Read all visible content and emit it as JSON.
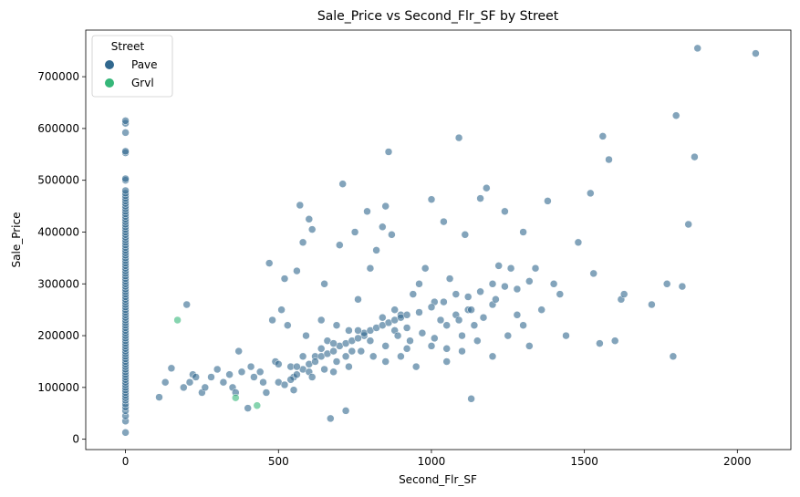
{
  "chart_data": {
    "type": "scatter",
    "title": "Sale_Price vs Second_Flr_SF by Street",
    "xlabel": "Second_Flr_SF",
    "ylabel": "Sale_Price",
    "xlim": [
      -130,
      2175
    ],
    "ylim": [
      -20000,
      790000
    ],
    "xticks": [
      0,
      500,
      1000,
      1500,
      2000
    ],
    "yticks": [
      0,
      100000,
      200000,
      300000,
      400000,
      500000,
      600000,
      700000
    ],
    "grid": false,
    "legend": {
      "title": "Street",
      "placement": "top-left"
    },
    "colors": {
      "Pave": "#31688e",
      "Grvl": "#35b779"
    },
    "series": [
      {
        "name": "Pave",
        "color": "#31688e",
        "points": [
          [
            0,
            13000
          ],
          [
            0,
            35000
          ],
          [
            0,
            45000
          ],
          [
            0,
            55000
          ],
          [
            0,
            62000
          ],
          [
            0,
            68000
          ],
          [
            0,
            75000
          ],
          [
            0,
            80000
          ],
          [
            0,
            85000
          ],
          [
            0,
            90000
          ],
          [
            0,
            95000
          ],
          [
            0,
            100000
          ],
          [
            0,
            105000
          ],
          [
            0,
            110000
          ],
          [
            0,
            115000
          ],
          [
            0,
            120000
          ],
          [
            0,
            125000
          ],
          [
            0,
            130000
          ],
          [
            0,
            135000
          ],
          [
            0,
            140000
          ],
          [
            0,
            145000
          ],
          [
            0,
            150000
          ],
          [
            0,
            155000
          ],
          [
            0,
            160000
          ],
          [
            0,
            165000
          ],
          [
            0,
            170000
          ],
          [
            0,
            175000
          ],
          [
            0,
            180000
          ],
          [
            0,
            185000
          ],
          [
            0,
            190000
          ],
          [
            0,
            195000
          ],
          [
            0,
            200000
          ],
          [
            0,
            205000
          ],
          [
            0,
            210000
          ],
          [
            0,
            215000
          ],
          [
            0,
            220000
          ],
          [
            0,
            225000
          ],
          [
            0,
            230000
          ],
          [
            0,
            235000
          ],
          [
            0,
            240000
          ],
          [
            0,
            245000
          ],
          [
            0,
            250000
          ],
          [
            0,
            255000
          ],
          [
            0,
            260000
          ],
          [
            0,
            265000
          ],
          [
            0,
            270000
          ],
          [
            0,
            275000
          ],
          [
            0,
            280000
          ],
          [
            0,
            285000
          ],
          [
            0,
            290000
          ],
          [
            0,
            295000
          ],
          [
            0,
            300000
          ],
          [
            0,
            305000
          ],
          [
            0,
            310000
          ],
          [
            0,
            315000
          ],
          [
            0,
            320000
          ],
          [
            0,
            325000
          ],
          [
            0,
            330000
          ],
          [
            0,
            335000
          ],
          [
            0,
            340000
          ],
          [
            0,
            345000
          ],
          [
            0,
            350000
          ],
          [
            0,
            355000
          ],
          [
            0,
            360000
          ],
          [
            0,
            365000
          ],
          [
            0,
            370000
          ],
          [
            0,
            375000
          ],
          [
            0,
            380000
          ],
          [
            0,
            385000
          ],
          [
            0,
            390000
          ],
          [
            0,
            395000
          ],
          [
            0,
            400000
          ],
          [
            0,
            405000
          ],
          [
            0,
            410000
          ],
          [
            0,
            415000
          ],
          [
            0,
            420000
          ],
          [
            0,
            425000
          ],
          [
            0,
            430000
          ],
          [
            0,
            435000
          ],
          [
            0,
            440000
          ],
          [
            0,
            445000
          ],
          [
            0,
            450000
          ],
          [
            0,
            455000
          ],
          [
            0,
            460000
          ],
          [
            0,
            465000
          ],
          [
            0,
            470000
          ],
          [
            0,
            475000
          ],
          [
            0,
            480000
          ],
          [
            0,
            500000
          ],
          [
            0,
            503000
          ],
          [
            0,
            553000
          ],
          [
            0,
            556000
          ],
          [
            0,
            592000
          ],
          [
            0,
            610000
          ],
          [
            0,
            615000
          ],
          [
            110,
            81000
          ],
          [
            130,
            110000
          ],
          [
            150,
            137000
          ],
          [
            190,
            100000
          ],
          [
            200,
            260000
          ],
          [
            210,
            110000
          ],
          [
            220,
            125000
          ],
          [
            230,
            120000
          ],
          [
            250,
            90000
          ],
          [
            260,
            100000
          ],
          [
            280,
            120000
          ],
          [
            300,
            135000
          ],
          [
            320,
            110000
          ],
          [
            340,
            125000
          ],
          [
            350,
            100000
          ],
          [
            360,
            90000
          ],
          [
            370,
            170000
          ],
          [
            380,
            130000
          ],
          [
            400,
            60000
          ],
          [
            410,
            140000
          ],
          [
            420,
            120000
          ],
          [
            440,
            130000
          ],
          [
            450,
            110000
          ],
          [
            460,
            90000
          ],
          [
            470,
            340000
          ],
          [
            480,
            230000
          ],
          [
            490,
            150000
          ],
          [
            500,
            110000
          ],
          [
            510,
            250000
          ],
          [
            520,
            310000
          ],
          [
            530,
            220000
          ],
          [
            540,
            140000
          ],
          [
            550,
            120000
          ],
          [
            560,
            325000
          ],
          [
            570,
            452000
          ],
          [
            580,
            380000
          ],
          [
            590,
            200000
          ],
          [
            600,
            425000
          ],
          [
            610,
            405000
          ],
          [
            620,
            160000
          ],
          [
            640,
            230000
          ],
          [
            650,
            300000
          ],
          [
            660,
            190000
          ],
          [
            670,
            40000
          ],
          [
            680,
            130000
          ],
          [
            690,
            220000
          ],
          [
            700,
            375000
          ],
          [
            710,
            493000
          ],
          [
            720,
            55000
          ],
          [
            730,
            210000
          ],
          [
            740,
            170000
          ],
          [
            750,
            400000
          ],
          [
            760,
            270000
          ],
          [
            780,
            200000
          ],
          [
            790,
            440000
          ],
          [
            800,
            330000
          ],
          [
            820,
            365000
          ],
          [
            840,
            410000
          ],
          [
            850,
            450000
          ],
          [
            860,
            555000
          ],
          [
            870,
            395000
          ],
          [
            880,
            210000
          ],
          [
            900,
            240000
          ],
          [
            920,
            175000
          ],
          [
            940,
            280000
          ],
          [
            960,
            300000
          ],
          [
            980,
            330000
          ],
          [
            1000,
            463000
          ],
          [
            1010,
            265000
          ],
          [
            1030,
            230000
          ],
          [
            1040,
            420000
          ],
          [
            1050,
            175000
          ],
          [
            1060,
            310000
          ],
          [
            1080,
            280000
          ],
          [
            1090,
            582000
          ],
          [
            1100,
            200000
          ],
          [
            1110,
            395000
          ],
          [
            1120,
            250000
          ],
          [
            1130,
            78000
          ],
          [
            1140,
            220000
          ],
          [
            1160,
            465000
          ],
          [
            1180,
            485000
          ],
          [
            1200,
            300000
          ],
          [
            1220,
            335000
          ],
          [
            1240,
            440000
          ],
          [
            1260,
            330000
          ],
          [
            1280,
            240000
          ],
          [
            1300,
            400000
          ],
          [
            1320,
            180000
          ],
          [
            1340,
            330000
          ],
          [
            1360,
            250000
          ],
          [
            1380,
            460000
          ],
          [
            1400,
            300000
          ],
          [
            1420,
            280000
          ],
          [
            1440,
            200000
          ],
          [
            1480,
            380000
          ],
          [
            1520,
            475000
          ],
          [
            1530,
            320000
          ],
          [
            1550,
            185000
          ],
          [
            1560,
            585000
          ],
          [
            1580,
            540000
          ],
          [
            1600,
            190000
          ],
          [
            1620,
            270000
          ],
          [
            1630,
            280000
          ],
          [
            1720,
            260000
          ],
          [
            1770,
            300000
          ],
          [
            1790,
            160000
          ],
          [
            1800,
            625000
          ],
          [
            1820,
            295000
          ],
          [
            1840,
            415000
          ],
          [
            1860,
            545000
          ],
          [
            1870,
            755000
          ],
          [
            2060,
            745000
          ],
          [
            540,
            115000
          ],
          [
            560,
            125000
          ],
          [
            580,
            135000
          ],
          [
            600,
            145000
          ],
          [
            620,
            150000
          ],
          [
            640,
            160000
          ],
          [
            660,
            165000
          ],
          [
            680,
            170000
          ],
          [
            700,
            180000
          ],
          [
            720,
            185000
          ],
          [
            740,
            190000
          ],
          [
            760,
            195000
          ],
          [
            780,
            205000
          ],
          [
            800,
            210000
          ],
          [
            820,
            215000
          ],
          [
            840,
            220000
          ],
          [
            860,
            225000
          ],
          [
            880,
            230000
          ],
          [
            900,
            235000
          ],
          [
            920,
            240000
          ],
          [
            560,
            140000
          ],
          [
            600,
            130000
          ],
          [
            640,
            175000
          ],
          [
            680,
            185000
          ],
          [
            720,
            160000
          ],
          [
            760,
            210000
          ],
          [
            800,
            190000
          ],
          [
            840,
            235000
          ],
          [
            880,
            250000
          ],
          [
            920,
            215000
          ],
          [
            960,
            245000
          ],
          [
            1000,
            255000
          ],
          [
            1040,
            265000
          ],
          [
            1080,
            240000
          ],
          [
            1120,
            275000
          ],
          [
            1160,
            285000
          ],
          [
            1200,
            260000
          ],
          [
            1240,
            295000
          ],
          [
            1280,
            290000
          ],
          [
            1320,
            305000
          ],
          [
            500,
            145000
          ],
          [
            520,
            105000
          ],
          [
            550,
            95000
          ],
          [
            580,
            160000
          ],
          [
            610,
            120000
          ],
          [
            650,
            135000
          ],
          [
            690,
            150000
          ],
          [
            730,
            140000
          ],
          [
            770,
            170000
          ],
          [
            810,
            160000
          ],
          [
            850,
            180000
          ],
          [
            890,
            200000
          ],
          [
            930,
            190000
          ],
          [
            970,
            205000
          ],
          [
            1010,
            195000
          ],
          [
            1050,
            220000
          ],
          [
            1090,
            230000
          ],
          [
            1130,
            250000
          ],
          [
            1170,
            235000
          ],
          [
            1210,
            270000
          ],
          [
            850,
            150000
          ],
          [
            900,
            160000
          ],
          [
            950,
            140000
          ],
          [
            1000,
            180000
          ],
          [
            1050,
            150000
          ],
          [
            1100,
            170000
          ],
          [
            1150,
            190000
          ],
          [
            1200,
            160000
          ],
          [
            1250,
            200000
          ],
          [
            1300,
            220000
          ]
        ]
      },
      {
        "name": "Grvl",
        "color": "#35b779",
        "points": [
          [
            170,
            230000
          ],
          [
            360,
            80000
          ],
          [
            430,
            65000
          ]
        ]
      }
    ]
  }
}
